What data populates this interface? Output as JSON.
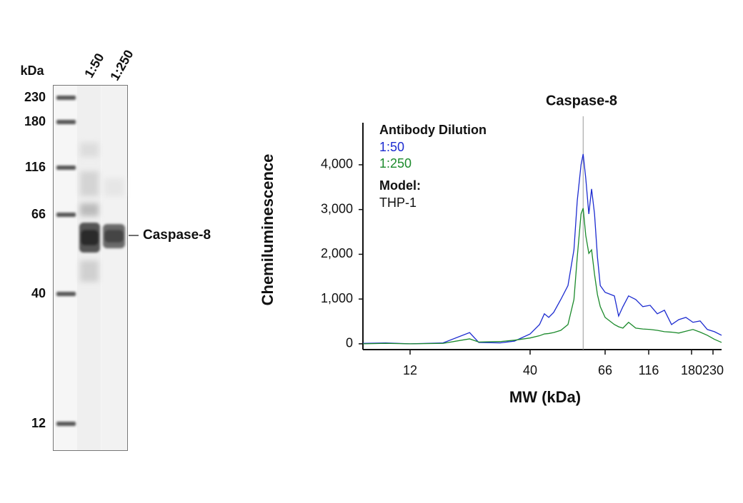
{
  "blot": {
    "unit_label": "kDa",
    "lanes": [
      "1:50",
      "1:250"
    ],
    "markers": [
      "230",
      "180",
      "116",
      "66",
      "40",
      "12"
    ],
    "band_label": "Caspase-8"
  },
  "chart_data": {
    "type": "line",
    "annotation": {
      "text": "Caspase-8",
      "x": 57
    },
    "y_label": "Chemiluminescence",
    "x_label": "MW (kDa)",
    "legend_title": "Antibody Dilution",
    "model_label": "Model:",
    "model": "THP-1",
    "log_x": true,
    "x": [
      7.5,
      9.4,
      12,
      16.7,
      21.8,
      23.9,
      29.6,
      34.2,
      40,
      42.6,
      44,
      45.3,
      46.8,
      49.1,
      51.5,
      53.6,
      54.8,
      56.2,
      57,
      58,
      59.2,
      60.3,
      61.5,
      62.7,
      63.9,
      66,
      74.4,
      78.6,
      83.1,
      89.4,
      98.1,
      107.5,
      117.7,
      126.7,
      136.3,
      146.6,
      157.9,
      169.8,
      182.9,
      198.5,
      215.5,
      234.3,
      257
    ],
    "series": [
      {
        "name": "1:50",
        "color": "#1c2bd0",
        "values": [
          10,
          20,
          0,
          20,
          250,
          30,
          20,
          60,
          220,
          430,
          670,
          590,
          700,
          990,
          1300,
          2100,
          3200,
          4000,
          4240,
          3700,
          2900,
          3460,
          2900,
          1940,
          1300,
          1150,
          1070,
          620,
          830,
          1070,
          990,
          830,
          860,
          670,
          750,
          430,
          540,
          590,
          480,
          510,
          320,
          270,
          190
        ]
      },
      {
        "name": "1:250",
        "color": "#1b8a2b",
        "values": [
          0,
          10,
          0,
          10,
          110,
          40,
          50,
          80,
          130,
          180,
          220,
          230,
          250,
          300,
          430,
          990,
          1940,
          2900,
          3030,
          2420,
          2020,
          2100,
          1550,
          1100,
          830,
          590,
          430,
          380,
          350,
          480,
          350,
          330,
          320,
          300,
          270,
          260,
          240,
          280,
          320,
          260,
          190,
          100,
          30
        ]
      }
    ],
    "xlim": [
      7.5,
      257
    ],
    "xticks": [
      12,
      40,
      66,
      116,
      180,
      230
    ],
    "ylim": [
      -130,
      4940
    ],
    "yticks": [
      0,
      {
        "value": 1000,
        "label": "1,000"
      },
      {
        "value": 2000,
        "label": "2,000"
      },
      {
        "value": 3000,
        "label": "3,000"
      },
      {
        "value": 4000,
        "label": "4,000"
      }
    ]
  }
}
